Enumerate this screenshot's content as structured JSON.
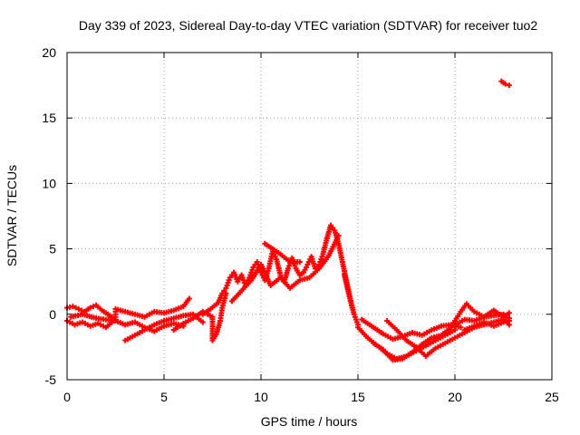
{
  "chart_data": {
    "type": "scatter",
    "title": "Day 339 of 2023, Sidereal Day-to-day VTEC variation (SDTVAR) for receiver tuo2",
    "xlabel": "GPS time / hours",
    "ylabel": "SDTVAR / TECUs",
    "xlim": [
      0,
      25
    ],
    "ylim": [
      -5,
      20
    ],
    "xticks": [
      "0",
      "5",
      "10",
      "15",
      "20",
      "25"
    ],
    "yticks": [
      "-5",
      "0",
      "5",
      "10",
      "15",
      "20"
    ],
    "grid": true,
    "marker": "plus",
    "color": "#ff0000",
    "series": [
      {
        "name": "SDTVAR",
        "points": [
          [
            0.0,
            0.5
          ],
          [
            0.3,
            0.6
          ],
          [
            0.6,
            0.4
          ],
          [
            0.9,
            0.2
          ],
          [
            1.2,
            0.5
          ],
          [
            1.5,
            0.7
          ],
          [
            1.8,
            0.3
          ],
          [
            2.1,
            0.0
          ],
          [
            2.4,
            -0.3
          ],
          [
            0.0,
            -0.5
          ],
          [
            0.4,
            -0.8
          ],
          [
            0.8,
            -0.6
          ],
          [
            1.2,
            -0.9
          ],
          [
            1.6,
            -0.7
          ],
          [
            2.0,
            -1.0
          ],
          [
            2.5,
            -0.4
          ],
          [
            2.5,
            0.4
          ],
          [
            3.0,
            0.2
          ],
          [
            3.5,
            0.0
          ],
          [
            4.0,
            -0.2
          ],
          [
            4.5,
            0.2
          ],
          [
            5.0,
            0.1
          ],
          [
            5.5,
            0.3
          ],
          [
            6.0,
            0.6
          ],
          [
            6.3,
            1.2
          ],
          [
            0.2,
            -0.2
          ],
          [
            0.8,
            0.0
          ],
          [
            1.5,
            -0.3
          ],
          [
            2.5,
            -0.5
          ],
          [
            3.0,
            -0.8
          ],
          [
            3.5,
            -0.6
          ],
          [
            4.0,
            -1.0
          ],
          [
            4.5,
            -1.3
          ],
          [
            5.0,
            -0.9
          ],
          [
            5.5,
            -0.7
          ],
          [
            6.0,
            -0.9
          ],
          [
            3.0,
            -2.0
          ],
          [
            3.5,
            -1.6
          ],
          [
            4.0,
            -1.2
          ],
          [
            4.5,
            -0.8
          ],
          [
            5.0,
            -0.5
          ],
          [
            5.5,
            -0.3
          ],
          [
            6.0,
            -0.1
          ],
          [
            6.5,
            0.0
          ],
          [
            7.0,
            -0.6
          ],
          [
            5.5,
            -1.2
          ],
          [
            6.0,
            -0.7
          ],
          [
            6.5,
            -0.3
          ],
          [
            7.0,
            0.2
          ],
          [
            7.5,
            -0.2
          ],
          [
            7.5,
            -2.0
          ],
          [
            7.7,
            -1.5
          ],
          [
            7.9,
            -0.5
          ],
          [
            8.0,
            0.5
          ],
          [
            8.2,
            1.6
          ],
          [
            7.0,
            0.0
          ],
          [
            7.4,
            0.4
          ],
          [
            7.8,
            0.9
          ],
          [
            8.0,
            1.6
          ],
          [
            8.2,
            2.0
          ],
          [
            8.4,
            2.8
          ],
          [
            8.6,
            3.2
          ],
          [
            8.8,
            2.5
          ],
          [
            9.0,
            3.0
          ],
          [
            9.2,
            2.2
          ],
          [
            9.4,
            2.8
          ],
          [
            9.6,
            3.6
          ],
          [
            9.8,
            4.0
          ],
          [
            10.0,
            3.2
          ],
          [
            10.2,
            2.6
          ],
          [
            10.4,
            3.5
          ],
          [
            10.6,
            4.8
          ],
          [
            10.8,
            4.2
          ],
          [
            11.0,
            3.0
          ],
          [
            11.2,
            2.5
          ],
          [
            11.4,
            3.5
          ],
          [
            11.6,
            4.3
          ],
          [
            11.8,
            3.5
          ],
          [
            12.0,
            3.0
          ],
          [
            12.2,
            3.2
          ],
          [
            12.4,
            3.8
          ],
          [
            12.6,
            4.4
          ],
          [
            12.8,
            3.5
          ],
          [
            13.0,
            3.8
          ],
          [
            13.2,
            4.6
          ],
          [
            13.4,
            5.8
          ],
          [
            13.6,
            6.8
          ],
          [
            13.8,
            6.4
          ],
          [
            14.0,
            5.4
          ],
          [
            14.2,
            4.0
          ],
          [
            14.4,
            2.6
          ],
          [
            14.6,
            1.2
          ],
          [
            14.8,
            0.0
          ],
          [
            15.0,
            -0.8
          ],
          [
            8.5,
            1.0
          ],
          [
            9.0,
            1.8
          ],
          [
            9.5,
            2.6
          ],
          [
            10.0,
            3.8
          ],
          [
            10.5,
            2.2
          ],
          [
            11.0,
            2.8
          ],
          [
            11.5,
            2.0
          ],
          [
            12.0,
            2.6
          ],
          [
            12.5,
            2.8
          ],
          [
            13.0,
            3.5
          ],
          [
            13.5,
            4.5
          ],
          [
            14.0,
            6.0
          ],
          [
            14.3,
            3.0
          ],
          [
            14.7,
            0.5
          ],
          [
            10.2,
            5.4
          ],
          [
            11.0,
            4.6
          ],
          [
            11.5,
            4.0
          ],
          [
            12.0,
            4.0
          ],
          [
            15.0,
            -1.0
          ],
          [
            15.5,
            -1.8
          ],
          [
            16.0,
            -2.4
          ],
          [
            16.5,
            -3.0
          ],
          [
            17.0,
            -3.4
          ],
          [
            17.5,
            -3.2
          ],
          [
            18.0,
            -2.8
          ],
          [
            18.5,
            -2.4
          ],
          [
            19.0,
            -2.0
          ],
          [
            19.5,
            -1.6
          ],
          [
            20.0,
            -1.2
          ],
          [
            15.2,
            -0.4
          ],
          [
            15.8,
            -1.0
          ],
          [
            16.3,
            -1.5
          ],
          [
            16.8,
            -1.9
          ],
          [
            17.3,
            -1.7
          ],
          [
            17.8,
            -1.4
          ],
          [
            18.3,
            -1.6
          ],
          [
            18.8,
            -1.2
          ],
          [
            19.3,
            -0.9
          ],
          [
            19.8,
            -0.8
          ],
          [
            20.3,
            -1.0
          ],
          [
            16.5,
            -0.5
          ],
          [
            17.0,
            -1.2
          ],
          [
            17.5,
            -2.0
          ],
          [
            18.0,
            -2.5
          ],
          [
            18.5,
            -3.2
          ],
          [
            19.0,
            -2.6
          ],
          [
            19.5,
            -2.2
          ],
          [
            20.0,
            -1.8
          ],
          [
            20.5,
            -1.4
          ],
          [
            21.0,
            -1.0
          ],
          [
            21.5,
            -0.8
          ],
          [
            22.0,
            -0.6
          ],
          [
            22.5,
            -0.4
          ],
          [
            22.8,
            -0.8
          ],
          [
            15.8,
            -2.2
          ],
          [
            16.3,
            -2.7
          ],
          [
            16.8,
            -3.5
          ],
          [
            17.3,
            -3.4
          ],
          [
            17.8,
            -2.9
          ],
          [
            18.3,
            -2.3
          ],
          [
            18.8,
            -1.8
          ],
          [
            19.3,
            -1.6
          ],
          [
            19.8,
            -1.0
          ],
          [
            20.0,
            -0.5
          ],
          [
            20.3,
            0.2
          ],
          [
            20.6,
            0.8
          ],
          [
            21.0,
            0.2
          ],
          [
            21.5,
            -0.2
          ],
          [
            22.0,
            0.3
          ],
          [
            22.5,
            -0.2
          ],
          [
            22.8,
            0.1
          ],
          [
            20.5,
            -1.2
          ],
          [
            21.0,
            -0.9
          ],
          [
            21.5,
            -0.6
          ],
          [
            22.0,
            -0.9
          ],
          [
            22.5,
            -0.6
          ],
          [
            22.8,
            -0.5
          ],
          [
            20.0,
            -0.8
          ],
          [
            20.5,
            -0.4
          ],
          [
            21.0,
            -0.5
          ],
          [
            21.5,
            -0.2
          ],
          [
            22.0,
            -0.1
          ],
          [
            22.5,
            0.0
          ],
          [
            22.8,
            -0.3
          ],
          [
            22.4,
            17.8
          ],
          [
            22.6,
            17.6
          ],
          [
            22.8,
            17.5
          ]
        ]
      }
    ]
  }
}
